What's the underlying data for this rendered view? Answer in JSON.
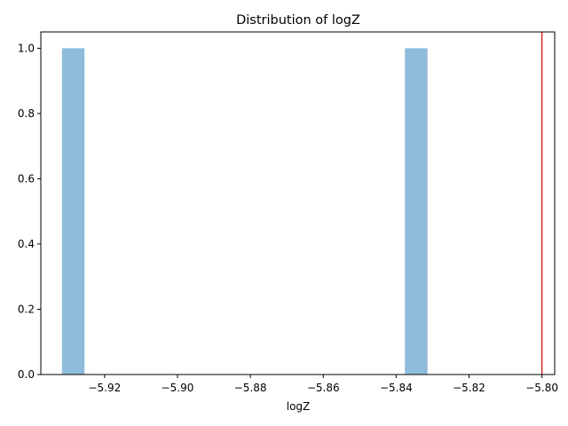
{
  "chart_data": {
    "type": "bar",
    "title": "Distribution of logZ",
    "xlabel": "logZ",
    "ylabel": "",
    "xlim": [
      -5.9375,
      -5.7965
    ],
    "ylim": [
      0,
      1.05
    ],
    "x_ticks": [
      -5.92,
      -5.9,
      -5.88,
      -5.86,
      -5.84,
      -5.82,
      -5.8
    ],
    "x_tick_labels": [
      "−5.92",
      "−5.90",
      "−5.88",
      "−5.86",
      "−5.84",
      "−5.82",
      "−5.80"
    ],
    "y_ticks": [
      0.0,
      0.2,
      0.4,
      0.6,
      0.8,
      1.0
    ],
    "y_tick_labels": [
      "0.0",
      "0.2",
      "0.4",
      "0.6",
      "0.8",
      "1.0"
    ],
    "bars": [
      {
        "x0": -5.9317,
        "x1": -5.9255,
        "count": 1
      },
      {
        "x0": -5.8376,
        "x1": -5.8314,
        "count": 1
      }
    ],
    "bar_color": "#8fbcdb",
    "reference_line": {
      "x": -5.8,
      "color": "#d62728"
    },
    "grid": false,
    "legend": "none"
  }
}
